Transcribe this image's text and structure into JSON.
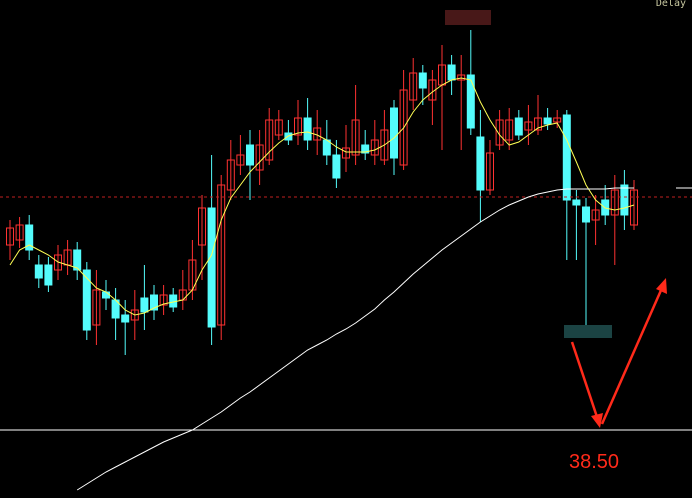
{
  "chart_data": {
    "type": "candlestick",
    "status_text": "Delay",
    "ylim": [
      37.82,
      42.8
    ],
    "up_color": "#ff3232",
    "down_color": "#54fcfc",
    "open": [
      40.35,
      40.4,
      40.55,
      40.15,
      40.15,
      40.1,
      40.15,
      40.3,
      40.1,
      39.55,
      39.88,
      39.8,
      39.65,
      39.6,
      39.82,
      39.85,
      39.75,
      39.85,
      39.8,
      39.9,
      40.35,
      40.72,
      39.55,
      40.9,
      41.15,
      41.35,
      41.1,
      41.2,
      41.45,
      41.47,
      41.45,
      41.62,
      41.4,
      41.4,
      41.25,
      41.22,
      41.25,
      41.35,
      41.25,
      41.2,
      41.72,
      41.15,
      41.8,
      42.07,
      41.8,
      41.95,
      42.15,
      42.0,
      42.05,
      41.43,
      40.9,
      41.35,
      41.4,
      41.62,
      41.5,
      41.5,
      41.62,
      41.58,
      41.65,
      40.8,
      40.73,
      40.6,
      40.8,
      40.65,
      40.95,
      40.55
    ],
    "high": [
      40.6,
      40.63,
      40.65,
      40.25,
      40.23,
      40.35,
      40.4,
      40.38,
      40.18,
      40.1,
      40.0,
      39.92,
      39.8,
      39.9,
      40.15,
      39.95,
      39.95,
      39.92,
      40.1,
      40.4,
      40.85,
      41.25,
      41.05,
      41.4,
      41.45,
      41.5,
      41.5,
      41.72,
      41.7,
      41.6,
      41.8,
      41.82,
      41.7,
      41.6,
      41.4,
      41.55,
      41.95,
      41.5,
      41.6,
      41.7,
      41.8,
      42.1,
      42.22,
      42.15,
      42.1,
      42.35,
      42.25,
      42.25,
      42.5,
      41.7,
      41.4,
      41.7,
      41.72,
      41.7,
      41.75,
      41.85,
      41.72,
      41.7,
      41.7,
      40.9,
      40.82,
      40.85,
      40.95,
      41.05,
      41.1,
      41.0
    ],
    "low": [
      40.2,
      40.32,
      40.2,
      39.92,
      39.88,
      40.0,
      40.05,
      40.0,
      39.4,
      39.35,
      39.7,
      39.4,
      39.25,
      39.4,
      39.5,
      39.6,
      39.65,
      39.68,
      39.7,
      39.8,
      40.0,
      39.35,
      39.4,
      40.8,
      41.05,
      40.8,
      40.95,
      41.15,
      41.4,
      41.35,
      41.35,
      41.3,
      41.25,
      41.15,
      40.92,
      41.08,
      41.15,
      41.2,
      41.15,
      41.15,
      41.05,
      41.1,
      41.7,
      41.75,
      41.55,
      41.3,
      41.85,
      41.3,
      41.45,
      40.58,
      40.85,
      41.3,
      41.3,
      41.4,
      41.35,
      41.45,
      41.5,
      41.52,
      40.2,
      40.2,
      39.55,
      40.35,
      40.55,
      40.15,
      40.5,
      40.5
    ],
    "close": [
      40.52,
      40.55,
      40.3,
      40.02,
      39.95,
      40.25,
      40.3,
      40.1,
      39.5,
      39.9,
      39.82,
      39.62,
      39.58,
      39.7,
      39.68,
      39.7,
      39.85,
      39.73,
      39.9,
      40.2,
      40.72,
      39.53,
      40.95,
      41.2,
      41.25,
      41.15,
      41.35,
      41.6,
      41.6,
      41.4,
      41.62,
      41.4,
      41.52,
      41.25,
      41.02,
      41.32,
      41.6,
      41.27,
      41.4,
      41.5,
      41.22,
      41.9,
      42.07,
      41.92,
      42.0,
      42.15,
      42.0,
      42.05,
      41.52,
      40.9,
      41.27,
      41.6,
      41.6,
      41.45,
      41.58,
      41.62,
      41.56,
      41.62,
      40.8,
      40.75,
      40.58,
      40.7,
      40.65,
      40.9,
      40.65,
      40.9
    ],
    "series": [
      {
        "color": "#ffff54",
        "values": [
          40.15,
          40.3,
          40.35,
          40.3,
          40.25,
          40.18,
          40.15,
          40.12,
          40.02,
          39.92,
          39.88,
          39.8,
          39.7,
          39.65,
          39.67,
          39.72,
          39.76,
          39.78,
          39.8,
          39.9,
          40.1,
          40.25,
          40.6,
          40.82,
          40.95,
          41.08,
          41.18,
          41.28,
          41.37,
          41.44,
          41.47,
          41.48,
          41.45,
          41.4,
          41.33,
          41.28,
          41.28,
          41.28,
          41.3,
          41.35,
          41.42,
          41.52,
          41.68,
          41.8,
          41.88,
          41.95,
          42.0,
          42.02,
          42.0,
          41.78,
          41.6,
          41.45,
          41.35,
          41.38,
          41.45,
          41.52,
          41.55,
          41.57,
          41.4,
          41.18,
          40.95,
          40.8,
          40.72,
          40.7,
          40.72,
          40.75
        ]
      },
      {
        "color": "#ffffff",
        "values": [
          null,
          null,
          null,
          null,
          null,
          null,
          null,
          37.9,
          37.96,
          38.02,
          38.08,
          38.13,
          38.18,
          38.23,
          38.28,
          38.33,
          38.38,
          38.42,
          38.46,
          38.5,
          38.56,
          38.62,
          38.68,
          38.75,
          38.82,
          38.88,
          38.95,
          39.02,
          39.09,
          39.16,
          39.23,
          39.3,
          39.35,
          39.4,
          39.46,
          39.51,
          39.57,
          39.64,
          39.71,
          39.8,
          39.88,
          39.97,
          40.06,
          40.14,
          40.22,
          40.3,
          40.37,
          40.44,
          40.51,
          40.58,
          40.64,
          40.7,
          40.75,
          40.79,
          40.83,
          40.86,
          40.88,
          40.9,
          40.91,
          40.91,
          40.91,
          40.91,
          40.91,
          40.92,
          40.92,
          40.92
        ]
      }
    ],
    "support": {
      "value": 38.5,
      "label": "38.50"
    },
    "dashed_line": 40.83,
    "price_marker": 40.92
  }
}
